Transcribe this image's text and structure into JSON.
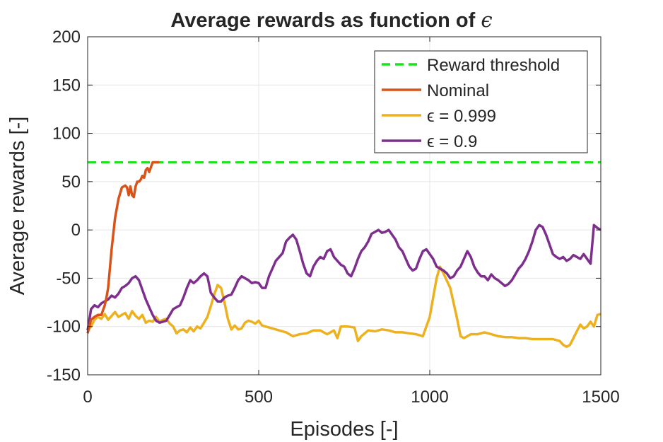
{
  "chart_data": {
    "type": "line",
    "title": "Average rewards as function of",
    "title_symbol": "ϵ",
    "xlabel": "Episodes [-]",
    "ylabel": "Average rewards [-]",
    "xlim": [
      0,
      1500
    ],
    "ylim": [
      -150,
      200
    ],
    "xticks": [
      0,
      500,
      1000,
      1500
    ],
    "yticks": [
      -150,
      -100,
      -50,
      0,
      50,
      100,
      150,
      200
    ],
    "grid": true,
    "legend_position": "top-right",
    "series": [
      {
        "name": "Reward threshold",
        "color": "#1fe21f",
        "dash": true,
        "x": [
          0,
          1500
        ],
        "y": [
          70,
          70
        ]
      },
      {
        "name": "Nominal",
        "color": "#d95319",
        "x": [
          0,
          10,
          20,
          30,
          40,
          50,
          55,
          60,
          70,
          80,
          90,
          100,
          105,
          110,
          115,
          120,
          125,
          130,
          135,
          140,
          145,
          150,
          155,
          160,
          165,
          170,
          175,
          180,
          185,
          190,
          200,
          210
        ],
        "y": [
          -107,
          -93,
          -90,
          -88,
          -88,
          -78,
          -70,
          -60,
          -20,
          12,
          32,
          44,
          45,
          46,
          44,
          36,
          45,
          36,
          34,
          45,
          50,
          50,
          52,
          56,
          54,
          62,
          64,
          60,
          65,
          70,
          70,
          70
        ]
      },
      {
        "name": "ϵ = 0.999",
        "color": "#edb120",
        "x": [
          0,
          10,
          20,
          30,
          40,
          50,
          60,
          70,
          80,
          90,
          100,
          110,
          120,
          130,
          140,
          150,
          160,
          170,
          180,
          190,
          200,
          210,
          220,
          230,
          240,
          250,
          260,
          270,
          280,
          290,
          300,
          310,
          320,
          330,
          340,
          350,
          360,
          370,
          380,
          390,
          400,
          410,
          420,
          430,
          440,
          450,
          460,
          470,
          480,
          490,
          500,
          510,
          520,
          540,
          560,
          580,
          600,
          620,
          640,
          660,
          680,
          700,
          720,
          730,
          740,
          760,
          780,
          790,
          800,
          820,
          840,
          860,
          880,
          900,
          920,
          940,
          960,
          980,
          1000,
          1010,
          1020,
          1030,
          1040,
          1060,
          1080,
          1090,
          1100,
          1120,
          1140,
          1160,
          1180,
          1200,
          1220,
          1240,
          1260,
          1280,
          1300,
          1320,
          1340,
          1360,
          1380,
          1390,
          1400,
          1410,
          1420,
          1430,
          1440,
          1450,
          1460,
          1470,
          1480,
          1490,
          1500
        ],
        "y": [
          -104,
          -100,
          -93,
          -90,
          -92,
          -87,
          -93,
          -89,
          -85,
          -90,
          -88,
          -86,
          -92,
          -84,
          -89,
          -92,
          -88,
          -96,
          -94,
          -95,
          -90,
          -95,
          -93,
          -92,
          -97,
          -100,
          -107,
          -104,
          -103,
          -106,
          -101,
          -105,
          -100,
          -102,
          -96,
          -90,
          -79,
          -67,
          -57,
          -60,
          -75,
          -92,
          -103,
          -99,
          -103,
          -102,
          -96,
          -94,
          -95,
          -97,
          -94,
          -99,
          -100,
          -102,
          -104,
          -106,
          -110,
          -108,
          -107,
          -104,
          -104,
          -108,
          -104,
          -112,
          -100,
          -100,
          -101,
          -115,
          -110,
          -104,
          -105,
          -103,
          -104,
          -106,
          -106,
          -107,
          -108,
          -110,
          -90,
          -70,
          -50,
          -38,
          -45,
          -60,
          -92,
          -110,
          -112,
          -108,
          -108,
          -106,
          -108,
          -110,
          -111,
          -111,
          -112,
          -112,
          -113,
          -113,
          -113,
          -113,
          -115,
          -119,
          -121,
          -119,
          -112,
          -105,
          -98,
          -102,
          -100,
          -95,
          -100,
          -88,
          -87
        ]
      },
      {
        "name": "ϵ = 0.9",
        "color": "#7e2f8e",
        "x": [
          0,
          10,
          20,
          30,
          40,
          50,
          60,
          70,
          80,
          90,
          100,
          110,
          120,
          130,
          140,
          150,
          160,
          170,
          180,
          190,
          200,
          210,
          220,
          230,
          240,
          250,
          260,
          270,
          280,
          290,
          300,
          310,
          320,
          330,
          340,
          350,
          360,
          370,
          380,
          390,
          400,
          410,
          420,
          430,
          440,
          450,
          460,
          470,
          480,
          490,
          500,
          510,
          520,
          530,
          540,
          550,
          560,
          570,
          580,
          590,
          600,
          610,
          620,
          630,
          640,
          650,
          660,
          670,
          680,
          690,
          700,
          710,
          720,
          730,
          740,
          750,
          760,
          770,
          780,
          790,
          800,
          810,
          820,
          830,
          840,
          850,
          860,
          870,
          880,
          890,
          900,
          910,
          920,
          930,
          940,
          950,
          960,
          970,
          980,
          990,
          1000,
          1010,
          1020,
          1030,
          1040,
          1050,
          1060,
          1070,
          1080,
          1090,
          1100,
          1110,
          1120,
          1130,
          1140,
          1150,
          1160,
          1170,
          1180,
          1190,
          1200,
          1210,
          1220,
          1230,
          1240,
          1250,
          1260,
          1270,
          1280,
          1290,
          1300,
          1310,
          1320,
          1330,
          1340,
          1350,
          1360,
          1370,
          1380,
          1390,
          1400,
          1410,
          1420,
          1430,
          1440,
          1450,
          1460,
          1470,
          1480,
          1490,
          1500
        ],
        "y": [
          -104,
          -82,
          -78,
          -80,
          -76,
          -74,
          -72,
          -68,
          -70,
          -66,
          -60,
          -58,
          -55,
          -50,
          -48,
          -52,
          -62,
          -72,
          -80,
          -88,
          -94,
          -96,
          -95,
          -94,
          -88,
          -82,
          -80,
          -78,
          -70,
          -60,
          -52,
          -55,
          -52,
          -48,
          -45,
          -48,
          -65,
          -70,
          -74,
          -74,
          -70,
          -68,
          -67,
          -60,
          -52,
          -48,
          -50,
          -52,
          -55,
          -54,
          -55,
          -60,
          -60,
          -48,
          -40,
          -32,
          -28,
          -24,
          -12,
          -8,
          -5,
          -10,
          -22,
          -35,
          -45,
          -48,
          -38,
          -32,
          -28,
          -30,
          -22,
          -20,
          -28,
          -32,
          -36,
          -38,
          -45,
          -48,
          -40,
          -30,
          -22,
          -18,
          -12,
          -4,
          -2,
          0,
          -3,
          -2,
          0,
          -5,
          -10,
          -18,
          -22,
          -30,
          -38,
          -42,
          -40,
          -30,
          -22,
          -20,
          -25,
          -30,
          -38,
          -40,
          -42,
          -45,
          -50,
          -48,
          -42,
          -38,
          -30,
          -22,
          -28,
          -38,
          -44,
          -48,
          -48,
          -52,
          -46,
          -50,
          -52,
          -55,
          -58,
          -56,
          -52,
          -46,
          -40,
          -36,
          -30,
          -22,
          -12,
          0,
          5,
          3,
          -5,
          -15,
          -25,
          -28,
          -30,
          -28,
          -32,
          -30,
          -26,
          -28,
          -30,
          -25,
          -30,
          -35,
          5,
          2,
          0
        ]
      }
    ]
  }
}
